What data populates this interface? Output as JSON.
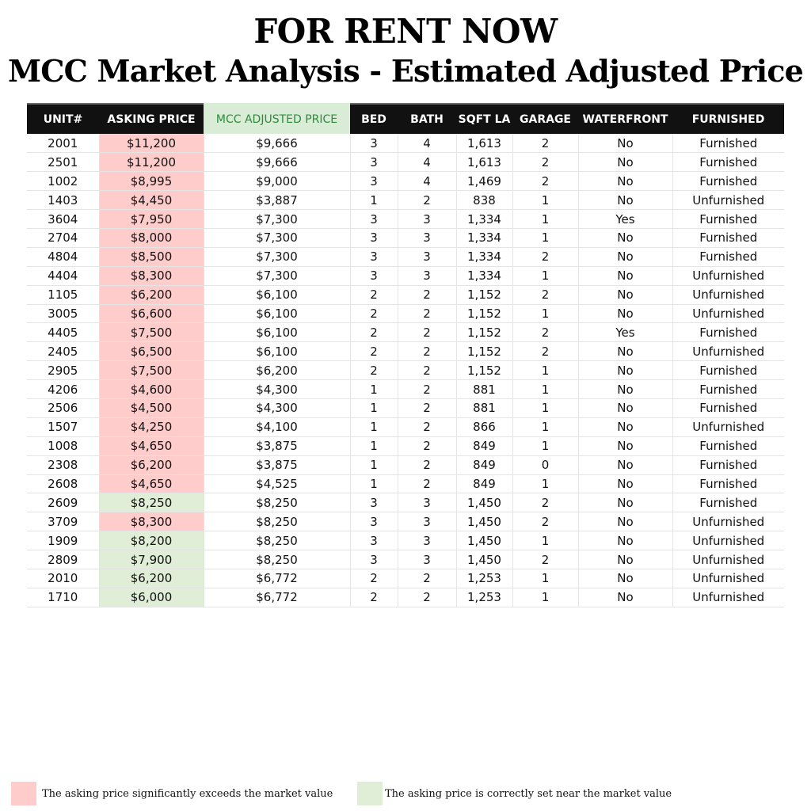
{
  "title_line1": "FOR RENT NOW",
  "title_line2": "MCC Market Analysis - Estimated Adjusted Price",
  "colors": {
    "over_market": "#ffcccc",
    "near_market": "#e0eed8",
    "header_bg": "#111111",
    "adjusted_header_bg": "#d9ecd5",
    "adjusted_header_text": "#2e8b3e"
  },
  "table": {
    "headers": [
      "UNIT#",
      "ASKING PRICE",
      "MCC ADJUSTED PRICE",
      "BED",
      "BATH",
      "SQFT LA",
      "GARAGE",
      "WATERFRONT",
      "FURNISHED"
    ],
    "rows": [
      {
        "unit": "2001",
        "asking": "$11,200",
        "adjusted": "$9,666",
        "bed": "3",
        "bath": "4",
        "sqft": "1,613",
        "garage": "2",
        "waterfront": "No",
        "furnished": "Furnished",
        "status": "over"
      },
      {
        "unit": "2501",
        "asking": "$11,200",
        "adjusted": "$9,666",
        "bed": "3",
        "bath": "4",
        "sqft": "1,613",
        "garage": "2",
        "waterfront": "No",
        "furnished": "Furnished",
        "status": "over"
      },
      {
        "unit": "1002",
        "asking": "$8,995",
        "adjusted": "$9,000",
        "bed": "3",
        "bath": "4",
        "sqft": "1,469",
        "garage": "2",
        "waterfront": "No",
        "furnished": "Furnished",
        "status": "over"
      },
      {
        "unit": "1403",
        "asking": "$4,450",
        "adjusted": "$3,887",
        "bed": "1",
        "bath": "2",
        "sqft": "838",
        "garage": "1",
        "waterfront": "No",
        "furnished": "Unfurnished",
        "status": "over"
      },
      {
        "unit": "3604",
        "asking": "$7,950",
        "adjusted": "$7,300",
        "bed": "3",
        "bath": "3",
        "sqft": "1,334",
        "garage": "1",
        "waterfront": "Yes",
        "furnished": "Furnished",
        "status": "over"
      },
      {
        "unit": "2704",
        "asking": "$8,000",
        "adjusted": "$7,300",
        "bed": "3",
        "bath": "3",
        "sqft": "1,334",
        "garage": "1",
        "waterfront": "No",
        "furnished": "Furnished",
        "status": "over"
      },
      {
        "unit": "4804",
        "asking": "$8,500",
        "adjusted": "$7,300",
        "bed": "3",
        "bath": "3",
        "sqft": "1,334",
        "garage": "2",
        "waterfront": "No",
        "furnished": "Furnished",
        "status": "over"
      },
      {
        "unit": "4404",
        "asking": "$8,300",
        "adjusted": "$7,300",
        "bed": "3",
        "bath": "3",
        "sqft": "1,334",
        "garage": "1",
        "waterfront": "No",
        "furnished": "Unfurnished",
        "status": "over"
      },
      {
        "unit": "1105",
        "asking": "$6,200",
        "adjusted": "$6,100",
        "bed": "2",
        "bath": "2",
        "sqft": "1,152",
        "garage": "2",
        "waterfront": "No",
        "furnished": "Unfurnished",
        "status": "over"
      },
      {
        "unit": "3005",
        "asking": "$6,600",
        "adjusted": "$6,100",
        "bed": "2",
        "bath": "2",
        "sqft": "1,152",
        "garage": "1",
        "waterfront": "No",
        "furnished": "Unfurnished",
        "status": "over"
      },
      {
        "unit": "4405",
        "asking": "$7,500",
        "adjusted": "$6,100",
        "bed": "2",
        "bath": "2",
        "sqft": "1,152",
        "garage": "2",
        "waterfront": "Yes",
        "furnished": "Furnished",
        "status": "over"
      },
      {
        "unit": "2405",
        "asking": "$6,500",
        "adjusted": "$6,100",
        "bed": "2",
        "bath": "2",
        "sqft": "1,152",
        "garage": "2",
        "waterfront": "No",
        "furnished": "Unfurnished",
        "status": "over"
      },
      {
        "unit": "2905",
        "asking": "$7,500",
        "adjusted": "$6,200",
        "bed": "2",
        "bath": "2",
        "sqft": "1,152",
        "garage": "1",
        "waterfront": "No",
        "furnished": "Furnished",
        "status": "over"
      },
      {
        "unit": "4206",
        "asking": "$4,600",
        "adjusted": "$4,300",
        "bed": "1",
        "bath": "2",
        "sqft": "881",
        "garage": "1",
        "waterfront": "No",
        "furnished": "Furnished",
        "status": "over"
      },
      {
        "unit": "2506",
        "asking": "$4,500",
        "adjusted": "$4,300",
        "bed": "1",
        "bath": "2",
        "sqft": "881",
        "garage": "1",
        "waterfront": "No",
        "furnished": "Furnished",
        "status": "over"
      },
      {
        "unit": "1507",
        "asking": "$4,250",
        "adjusted": "$4,100",
        "bed": "1",
        "bath": "2",
        "sqft": "866",
        "garage": "1",
        "waterfront": "No",
        "furnished": "Unfurnished",
        "status": "over"
      },
      {
        "unit": "1008",
        "asking": "$4,650",
        "adjusted": "$3,875",
        "bed": "1",
        "bath": "2",
        "sqft": "849",
        "garage": "1",
        "waterfront": "No",
        "furnished": "Furnished",
        "status": "over"
      },
      {
        "unit": "2308",
        "asking": "$6,200",
        "adjusted": "$3,875",
        "bed": "1",
        "bath": "2",
        "sqft": "849",
        "garage": "0",
        "waterfront": "No",
        "furnished": "Furnished",
        "status": "over"
      },
      {
        "unit": "2608",
        "asking": "$4,650",
        "adjusted": "$4,525",
        "bed": "1",
        "bath": "2",
        "sqft": "849",
        "garage": "1",
        "waterfront": "No",
        "furnished": "Furnished",
        "status": "over"
      },
      {
        "unit": "2609",
        "asking": "$8,250",
        "adjusted": "$8,250",
        "bed": "3",
        "bath": "3",
        "sqft": "1,450",
        "garage": "2",
        "waterfront": "No",
        "furnished": "Furnished",
        "status": "near"
      },
      {
        "unit": "3709",
        "asking": "$8,300",
        "adjusted": "$8,250",
        "bed": "3",
        "bath": "3",
        "sqft": "1,450",
        "garage": "2",
        "waterfront": "No",
        "furnished": "Unfurnished",
        "status": "over"
      },
      {
        "unit": "1909",
        "asking": "$8,200",
        "adjusted": "$8,250",
        "bed": "3",
        "bath": "3",
        "sqft": "1,450",
        "garage": "1",
        "waterfront": "No",
        "furnished": "Unfurnished",
        "status": "near"
      },
      {
        "unit": "2809",
        "asking": "$7,900",
        "adjusted": "$8,250",
        "bed": "3",
        "bath": "3",
        "sqft": "1,450",
        "garage": "2",
        "waterfront": "No",
        "furnished": "Unfurnished",
        "status": "near"
      },
      {
        "unit": "2010",
        "asking": "$6,200",
        "adjusted": "$6,772",
        "bed": "2",
        "bath": "2",
        "sqft": "1,253",
        "garage": "1",
        "waterfront": "No",
        "furnished": "Unfurnished",
        "status": "near"
      },
      {
        "unit": "1710",
        "asking": "$6,000",
        "adjusted": "$6,772",
        "bed": "2",
        "bath": "2",
        "sqft": "1,253",
        "garage": "1",
        "waterfront": "No",
        "furnished": "Unfurnished",
        "status": "near"
      }
    ]
  },
  "legend": {
    "over_text": "The asking price significantly exceeds the market value",
    "near_text": "The asking price is correctly set near the market value"
  }
}
